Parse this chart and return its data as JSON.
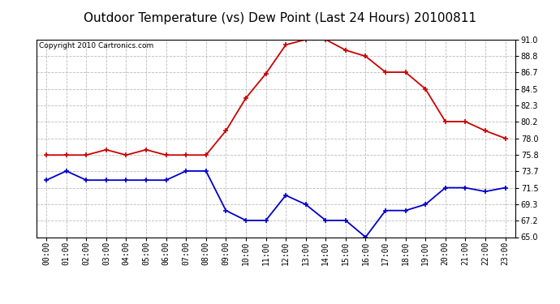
{
  "title": "Outdoor Temperature (vs) Dew Point (Last 24 Hours) 20100811",
  "copyright": "Copyright 2010 Cartronics.com",
  "hours": [
    "00:00",
    "01:00",
    "02:00",
    "03:00",
    "04:00",
    "05:00",
    "06:00",
    "07:00",
    "08:00",
    "09:00",
    "10:00",
    "11:00",
    "12:00",
    "13:00",
    "14:00",
    "15:00",
    "16:00",
    "17:00",
    "18:00",
    "19:00",
    "20:00",
    "21:00",
    "22:00",
    "23:00"
  ],
  "temp": [
    75.8,
    75.8,
    75.8,
    76.5,
    75.8,
    76.5,
    75.8,
    75.8,
    75.8,
    79.0,
    83.3,
    86.5,
    90.3,
    91.0,
    91.0,
    89.6,
    88.8,
    86.7,
    86.7,
    84.5,
    80.2,
    80.2,
    79.0,
    78.0
  ],
  "dew": [
    72.5,
    73.7,
    72.5,
    72.5,
    72.5,
    72.5,
    72.5,
    73.7,
    73.7,
    68.5,
    67.2,
    67.2,
    70.5,
    69.3,
    67.2,
    67.2,
    65.0,
    68.5,
    68.5,
    69.3,
    71.5,
    71.5,
    71.0,
    71.5
  ],
  "temp_color": "#cc0000",
  "dew_color": "#0000cc",
  "bg_color": "#ffffff",
  "plot_bg_color": "#ffffff",
  "grid_color": "#bbbbbb",
  "ylim": [
    65.0,
    91.0
  ],
  "yticks": [
    65.0,
    67.2,
    69.3,
    71.5,
    73.7,
    75.8,
    78.0,
    80.2,
    82.3,
    84.5,
    86.7,
    88.8,
    91.0
  ],
  "title_fontsize": 11,
  "copyright_fontsize": 6.5,
  "tick_fontsize": 7
}
